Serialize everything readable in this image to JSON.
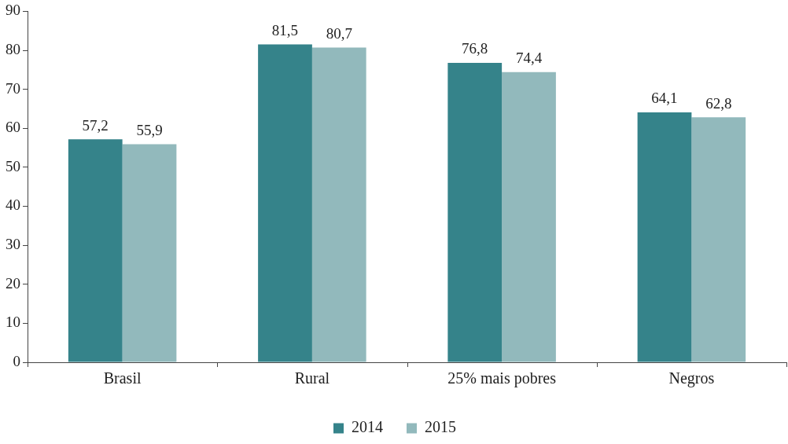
{
  "chart_data": {
    "type": "bar",
    "categories": [
      "Brasil",
      "Rural",
      "25% mais pobres",
      "Negros"
    ],
    "series": [
      {
        "name": "2014",
        "color": "#35838a",
        "values": [
          57.2,
          81.5,
          76.8,
          64.1
        ],
        "value_labels": [
          "57,2",
          "81,5",
          "76,8",
          "64,1"
        ]
      },
      {
        "name": "2015",
        "color": "#92b9bc",
        "values": [
          55.9,
          80.7,
          74.4,
          62.8
        ],
        "value_labels": [
          "55,9",
          "80,7",
          "74,4",
          "62,8"
        ]
      }
    ],
    "ylim": [
      0,
      90
    ],
    "yticks": [
      0,
      10,
      20,
      30,
      40,
      50,
      60,
      70,
      80,
      90
    ],
    "grid": false,
    "legend": "bottom"
  }
}
